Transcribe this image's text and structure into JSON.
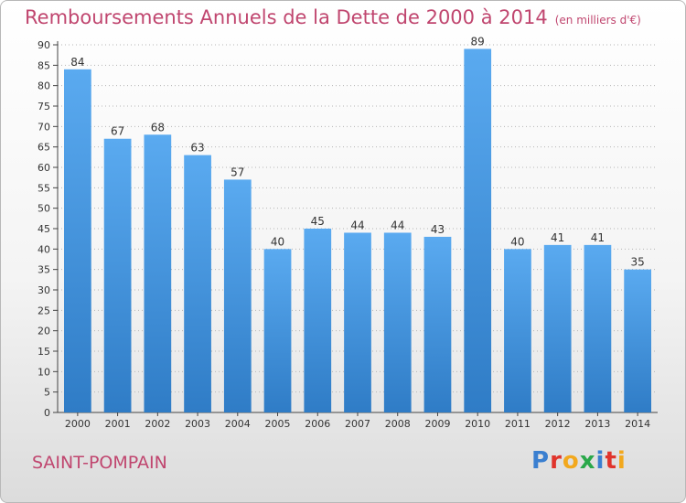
{
  "header": {
    "title": "Remboursements Annuels de la Dette de 2000 à 2014",
    "unit": "(en milliers d'€)"
  },
  "commune": "SAINT-POMPAIN",
  "logo": {
    "letters": [
      "P",
      "r",
      "o",
      "x",
      "i",
      "t",
      "i"
    ],
    "colors": [
      "#3a7fd0",
      "#e0342c",
      "#f2a81d",
      "#2aa84a",
      "#3a7fd0",
      "#e0342c",
      "#f2a81d"
    ]
  },
  "colors": {
    "bar": "#4a9be0",
    "bar_dark": "#2f7cc6",
    "title": "#c0466f",
    "grid": "#b5b5b5"
  },
  "chart_data": {
    "type": "bar",
    "title": "Remboursements Annuels de la Dette de 2000 à 2014",
    "xlabel": "",
    "ylabel": "",
    "categories": [
      "2000",
      "2001",
      "2002",
      "2003",
      "2004",
      "2005",
      "2006",
      "2007",
      "2008",
      "2009",
      "2010",
      "2011",
      "2012",
      "2013",
      "2014"
    ],
    "values": [
      84,
      67,
      68,
      63,
      57,
      40,
      45,
      44,
      44,
      43,
      89,
      40,
      41,
      41,
      35
    ],
    "ylim": [
      0,
      90
    ],
    "ytick_step": 5,
    "grid": true,
    "data_labels": true
  }
}
